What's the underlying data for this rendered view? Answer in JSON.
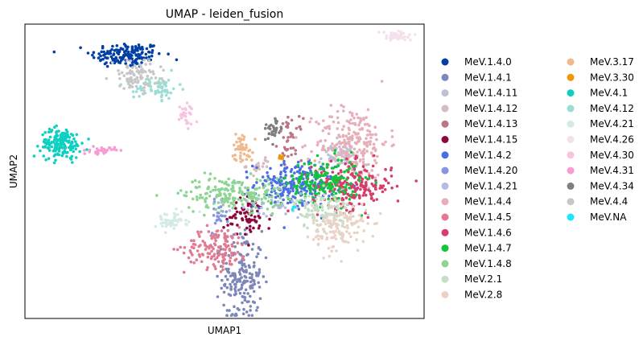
{
  "chart_data": {
    "type": "scatter",
    "title": "UMAP - leiden_fusion",
    "xlabel": "UMAP1",
    "ylabel": "UMAP2",
    "grid": false,
    "ticks": false,
    "xlim": [
      0,
      100
    ],
    "ylim": [
      0,
      100
    ],
    "legend": {
      "placement": "right",
      "columns": 2
    },
    "series": [
      {
        "name": "MeV.1.4.0",
        "color": "#023fa5",
        "center": [
          25.5,
          89.5
        ],
        "spread": [
          4.5,
          2.2
        ],
        "n": 160
      },
      {
        "name": "MeV.1.4.1",
        "color": "#7d87b9",
        "center": [
          54.5,
          14.0
        ],
        "spread": [
          2.5,
          8.0
        ],
        "n": 190
      },
      {
        "name": "MeV.1.4.11",
        "color": "#bec1d4",
        "center": [
          78.5,
          55.0
        ],
        "spread": [
          2.5,
          2.5
        ],
        "n": 60
      },
      {
        "name": "MeV.1.4.12",
        "color": "#d6bcc0",
        "center": [
          58.5,
          52.0
        ],
        "spread": [
          1.5,
          1.5
        ],
        "n": 20
      },
      {
        "name": "MeV.1.4.13",
        "color": "#bb7784",
        "center": [
          66.5,
          61.0
        ],
        "spread": [
          1.5,
          3.5
        ],
        "n": 40
      },
      {
        "name": "MeV.1.4.15",
        "color": "#8e063b",
        "center": [
          56.0,
          34.5
        ],
        "spread": [
          3.0,
          3.5
        ],
        "n": 70
      },
      {
        "name": "MeV.1.4.2",
        "color": "#4a6fe3",
        "center": [
          67.5,
          45.5
        ],
        "spread": [
          5.0,
          3.8
        ],
        "n": 230
      },
      {
        "name": "MeV.1.4.20",
        "color": "#8595e1",
        "center": [
          48.5,
          34.5
        ],
        "spread": [
          1.0,
          2.5
        ],
        "n": 25
      },
      {
        "name": "MeV.1.4.21",
        "color": "#b5bbe3",
        "center": [
          62.0,
          37.5
        ],
        "spread": [
          5.0,
          2.0
        ],
        "n": 35
      },
      {
        "name": "MeV.1.4.4",
        "color": "#e6afb9",
        "center": [
          82.0,
          60.0
        ],
        "spread": [
          4.5,
          6.0
        ],
        "n": 230
      },
      {
        "name": "MeV.1.4.5",
        "color": "#e07b91",
        "center": [
          48.0,
          24.0
        ],
        "spread": [
          4.0,
          3.5
        ],
        "n": 140
      },
      {
        "name": "MeV.1.4.6",
        "color": "#d33f6a",
        "center": [
          82.0,
          45.0
        ],
        "spread": [
          5.0,
          4.0
        ],
        "n": 210
      },
      {
        "name": "MeV.1.4.7",
        "color": "#11c638",
        "center": [
          75.0,
          46.5
        ],
        "spread": [
          4.5,
          4.0
        ],
        "n": 170
      },
      {
        "name": "MeV.1.4.8",
        "color": "#8dd593",
        "center": [
          52.5,
          42.5
        ],
        "spread": [
          6.5,
          2.8
        ],
        "n": 190
      },
      {
        "name": "MeV.2.1",
        "color": "#c6dec7",
        "center": [
          74.5,
          36.5
        ],
        "spread": [
          3.5,
          3.0
        ],
        "n": 110
      },
      {
        "name": "MeV.2.8",
        "color": "#ead3c6",
        "center": [
          79.0,
          31.0
        ],
        "spread": [
          3.5,
          4.0
        ],
        "n": 130
      },
      {
        "name": "MeV.3.17",
        "color": "#f0b98d",
        "center": [
          54.5,
          58.0
        ],
        "spread": [
          1.3,
          2.5
        ],
        "n": 50
      },
      {
        "name": "MeV.3.30",
        "color": "#ef9708",
        "center": [
          64.0,
          54.5
        ],
        "spread": [
          0.5,
          0.5
        ],
        "n": 12
      },
      {
        "name": "MeV.4.1",
        "color": "#0fcfc0",
        "center": [
          9.0,
          59.5
        ],
        "spread": [
          2.5,
          2.5
        ],
        "n": 170
      },
      {
        "name": "MeV.4.12",
        "color": "#9cded6",
        "center": [
          33.0,
          78.5
        ],
        "spread": [
          2.8,
          2.0
        ],
        "n": 70
      },
      {
        "name": "MeV.4.21",
        "color": "#d5eae7",
        "center": [
          36.5,
          33.0
        ],
        "spread": [
          2.0,
          1.5
        ],
        "n": 50
      },
      {
        "name": "MeV.4.26",
        "color": "#f3e1eb",
        "center": [
          93.0,
          96.0
        ],
        "spread": [
          2.0,
          0.8
        ],
        "n": 60
      },
      {
        "name": "MeV.4.30",
        "color": "#f6c4e1",
        "center": [
          40.5,
          69.5
        ],
        "spread": [
          1.0,
          2.0
        ],
        "n": 30
      },
      {
        "name": "MeV.4.31",
        "color": "#f79cd4",
        "center": [
          19.5,
          57.0
        ],
        "spread": [
          1.5,
          0.6
        ],
        "n": 35
      },
      {
        "name": "MeV.4.34",
        "color": "#7f7f7f",
        "center": [
          62.0,
          64.0
        ],
        "spread": [
          1.3,
          2.0
        ],
        "n": 30
      },
      {
        "name": "MeV.4.4",
        "color": "#c7c7c7",
        "center": [
          28.0,
          82.5
        ],
        "spread": [
          3.0,
          2.5
        ],
        "n": 90
      },
      {
        "name": "MeV.NA",
        "color": "#1ce6ff",
        "center": [
          67.5,
          38.0
        ],
        "spread": [
          0.5,
          0.5
        ],
        "n": 3
      }
    ]
  }
}
